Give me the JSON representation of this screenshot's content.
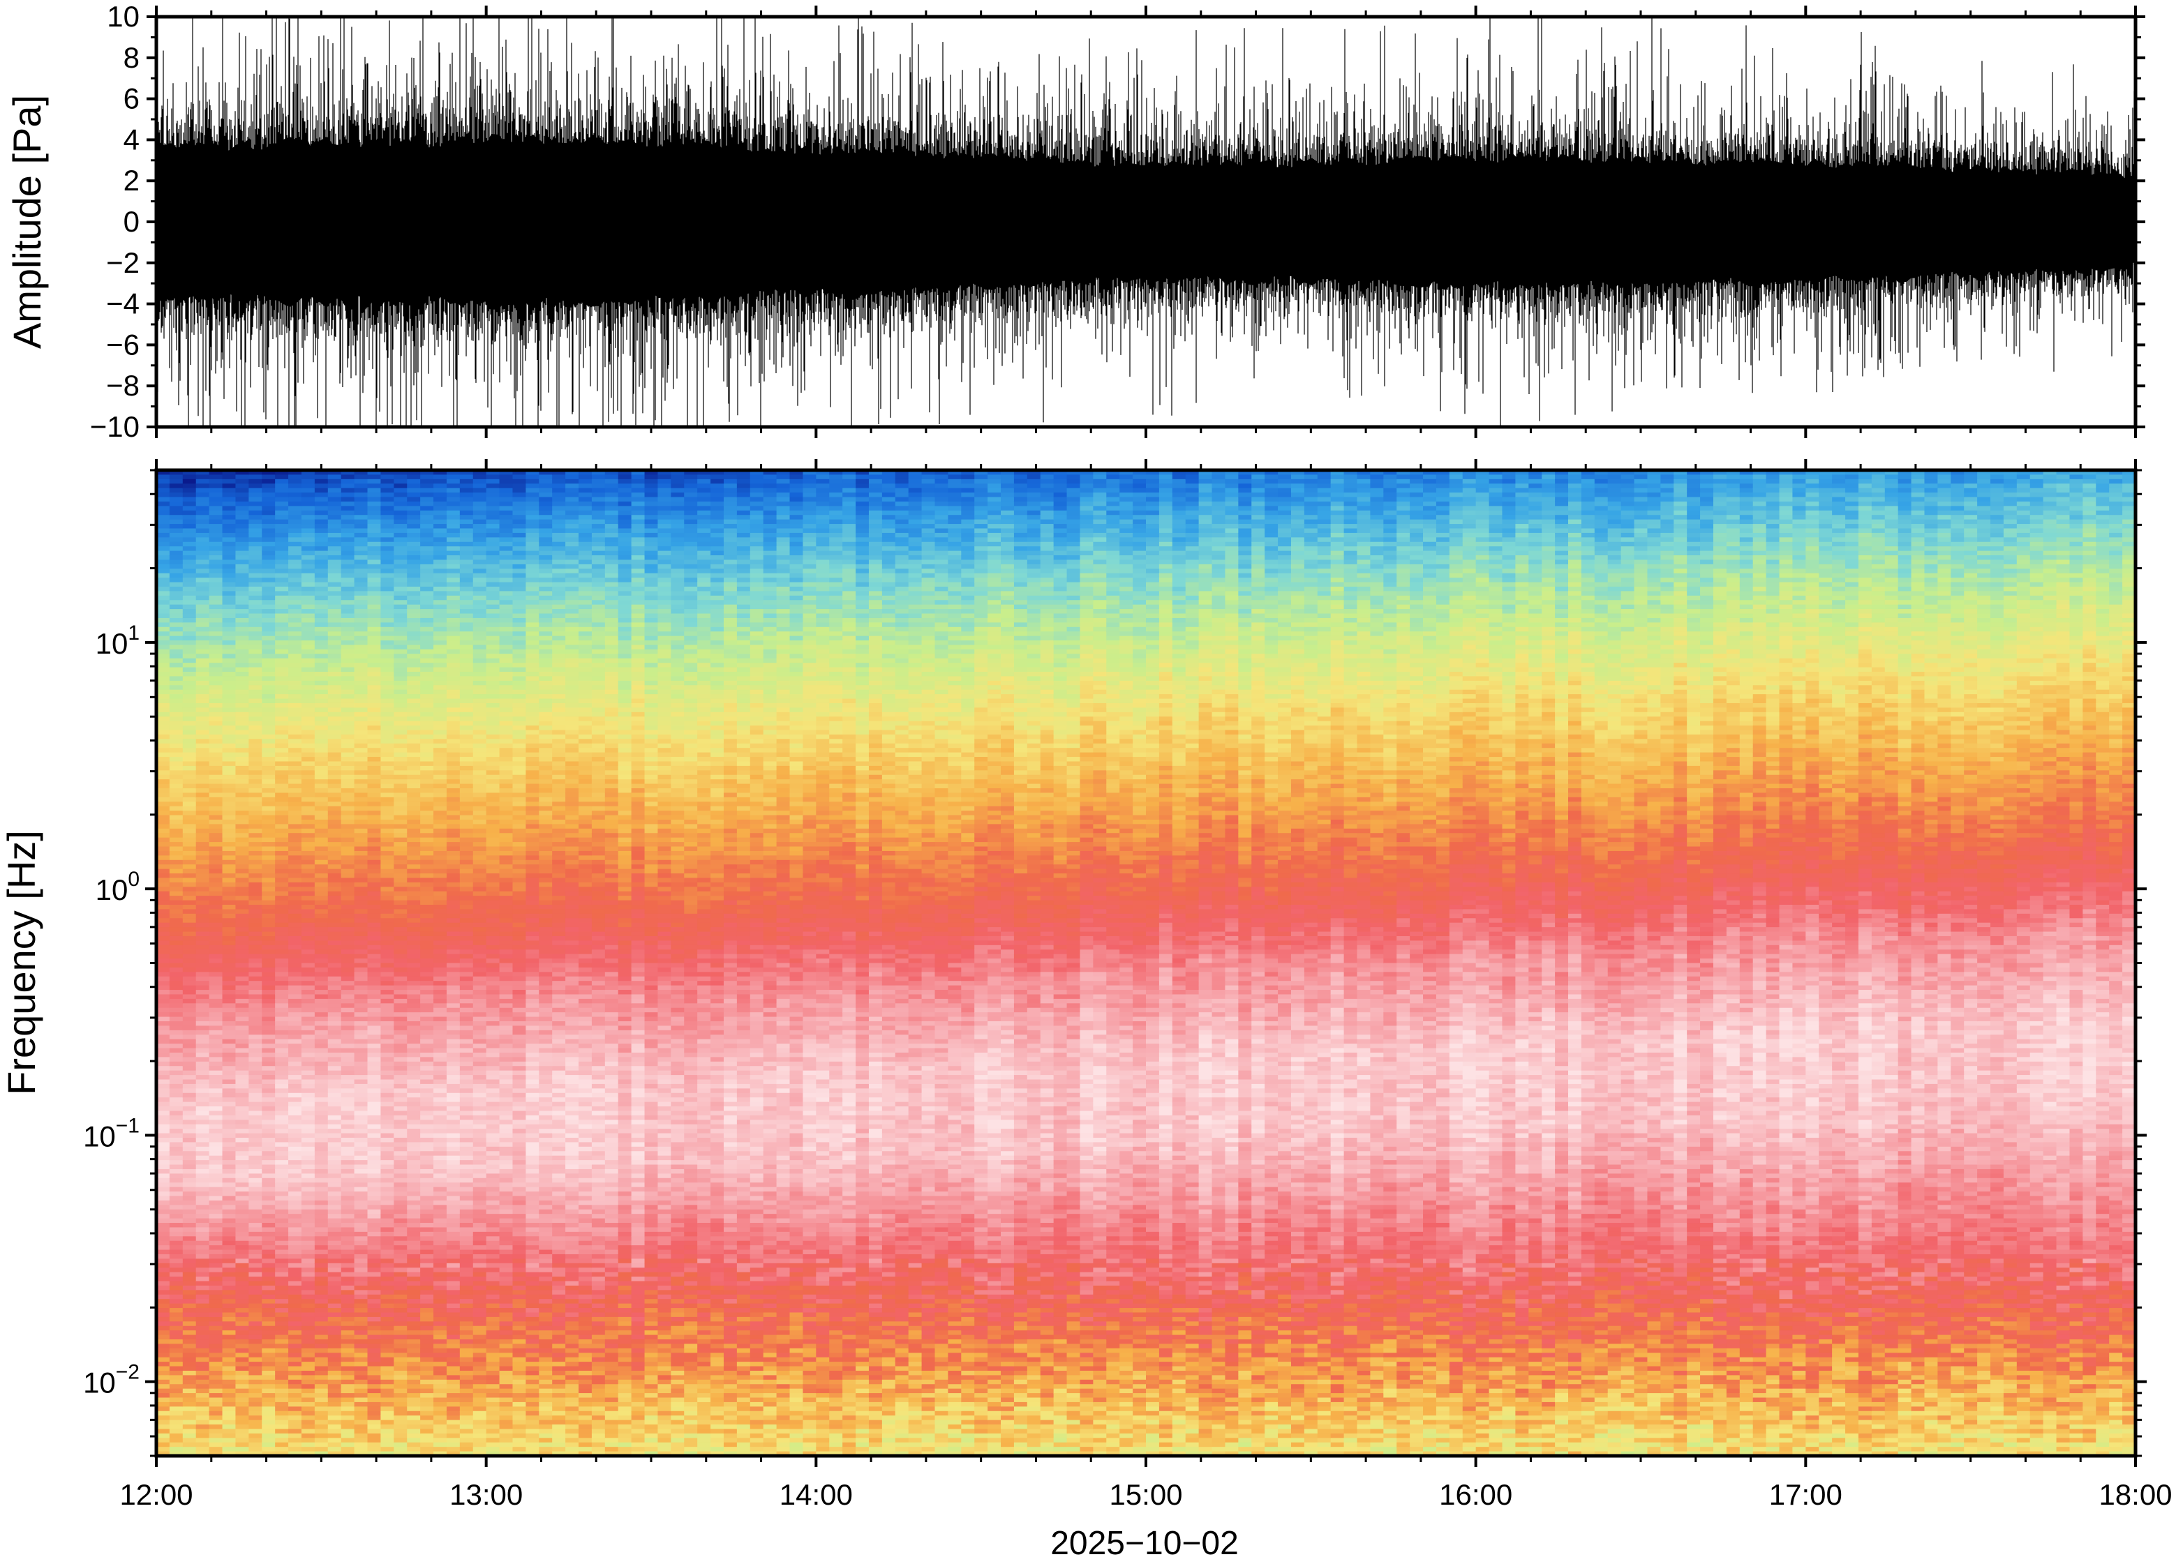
{
  "chart_data": [
    {
      "type": "line",
      "panel": "waveform",
      "ylabel": "Amplitude [Pa]",
      "ylim": [
        -10,
        10
      ],
      "yticks": [
        10,
        8,
        6,
        4,
        2,
        0,
        -2,
        -4,
        -6,
        -8,
        -10
      ],
      "ytick_labels": [
        "10",
        "8",
        "6",
        "4",
        "2",
        "0",
        "−2",
        "−4",
        "−6",
        "−8",
        "−10"
      ],
      "xlim": [
        "12:00",
        "18:00"
      ],
      "grid": false,
      "envelope": {
        "time_hours": [
          12.0,
          12.5,
          13.0,
          13.5,
          14.0,
          14.5,
          15.0,
          15.5,
          16.0,
          16.5,
          17.0,
          17.5,
          18.0
        ],
        "dense_amplitude": [
          4.2,
          4.4,
          4.6,
          4.4,
          4.0,
          3.7,
          3.2,
          3.3,
          3.6,
          3.5,
          3.3,
          3.0,
          2.6
        ],
        "peak_amplitude": [
          10,
          10,
          10,
          10,
          10,
          9.5,
          9,
          9,
          10,
          9.5,
          9,
          8.5,
          8
        ]
      },
      "color": "#000000"
    },
    {
      "type": "heatmap",
      "panel": "spectrogram",
      "ylabel": "Frequency [Hz]",
      "yscale": "log",
      "ylim": [
        0.005,
        50
      ],
      "yticks": [
        10,
        1,
        0.1,
        0.01
      ],
      "ytick_labels": [
        {
          "base": "10",
          "exp": "1"
        },
        {
          "base": "10",
          "exp": "0"
        },
        {
          "base": "10",
          "exp": "−1"
        },
        {
          "base": "10",
          "exp": "−2"
        }
      ],
      "xlabel": "2025−10−02",
      "xticks": [
        "12:00",
        "13:00",
        "14:00",
        "15:00",
        "16:00",
        "17:00",
        "18:00"
      ],
      "xlim": [
        "12:00",
        "18:00"
      ],
      "colormap": [
        "#0a1a8c",
        "#1565d8",
        "#36a4e6",
        "#7fd8d4",
        "#c9ee8c",
        "#f5e57a",
        "#f7b14a",
        "#f06a4c",
        "#f2646a",
        "#f7a7ad",
        "#fde2e4"
      ],
      "colorbar": false,
      "grid": false
    }
  ]
}
